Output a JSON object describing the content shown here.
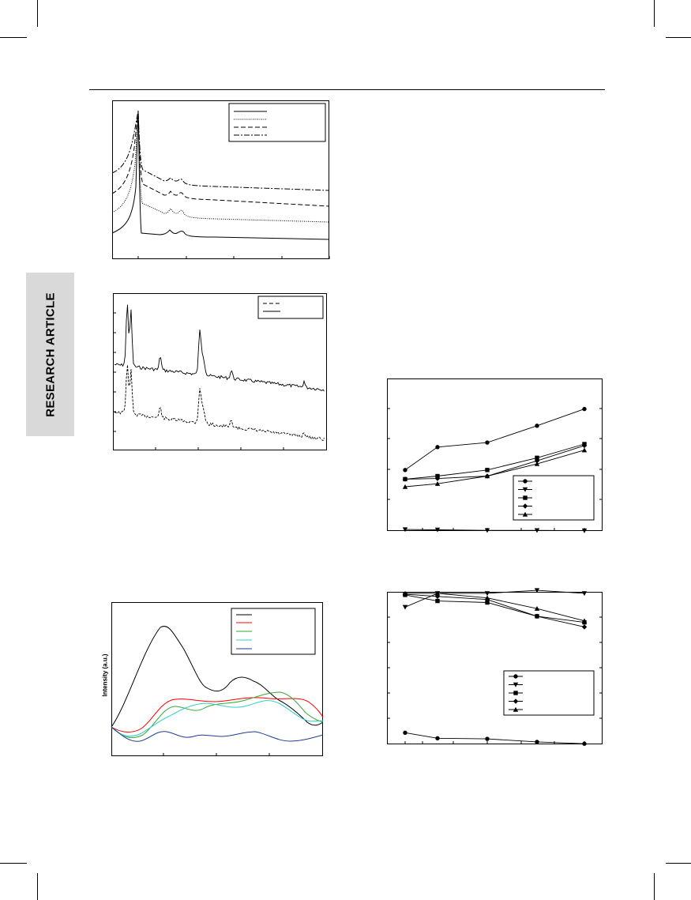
{
  "page": {
    "side_tab_label": "RESEARCH ARTICLE"
  },
  "figures": {
    "fig_spectra4": {
      "legend_entries": 4
    },
    "fig_xrd": {
      "legend_entries": 2
    },
    "fig_pl": {
      "ylabel": "Intensity (a.u.)",
      "series_colors": [
        "#000000",
        "#ff0000",
        "#33aa33",
        "#33cccc",
        "#1a3f99"
      ]
    },
    "fig_trend_up": {
      "legend_entries": 5
    },
    "fig_trend_down": {
      "legend_entries": 5
    }
  },
  "chart_data": [
    {
      "type": "line",
      "series": [
        {
          "values": [
            0.35,
            1.9,
            0.35,
            0.38,
            0.25,
            0.2
          ]
        },
        {
          "values": [
            0.55,
            1.9,
            0.6,
            0.6,
            0.5,
            0.45
          ]
        },
        {
          "values": [
            0.75,
            1.9,
            0.8,
            0.8,
            0.7,
            0.65
          ]
        },
        {
          "values": [
            0.95,
            1.9,
            1.0,
            1.0,
            0.9,
            0.85
          ]
        }
      ],
      "grid": false,
      "legend": "top-right"
    },
    {
      "type": "line",
      "series": [
        {},
        {}
      ],
      "grid": false,
      "legend": "top-right"
    },
    {
      "type": "line",
      "ylabel": "Intensity (a.u.)",
      "series": [
        {},
        {},
        {},
        {},
        {}
      ],
      "grid": false,
      "legend": "top-right"
    },
    {
      "type": "line",
      "x": [
        0,
        1,
        3,
        5,
        7
      ],
      "series": [
        {
          "marker": "circle",
          "values": [
            2.0,
            2.75,
            2.9,
            3.45,
            4.0
          ]
        },
        {
          "marker": "triangle-down",
          "values": [
            0.05,
            0.04,
            0.02,
            0.02,
            0.01
          ]
        },
        {
          "marker": "square",
          "values": [
            1.7,
            1.8,
            2.0,
            2.4,
            2.85
          ]
        },
        {
          "marker": "diamond",
          "values": [
            1.7,
            1.72,
            1.8,
            2.3,
            2.8
          ]
        },
        {
          "marker": "triangle-up",
          "values": [
            1.45,
            1.55,
            1.8,
            2.2,
            2.65
          ]
        }
      ],
      "ylim": [
        0,
        5
      ],
      "grid": false,
      "legend": "center-right"
    },
    {
      "type": "line",
      "x": [
        0,
        1,
        3,
        5,
        7
      ],
      "series": [
        {
          "marker": "circle",
          "values": [
            0.38,
            0.2,
            0.18,
            0.08,
            0.02
          ]
        },
        {
          "marker": "triangle-down",
          "values": [
            4.5,
            4.95,
            4.95,
            5.05,
            4.95
          ]
        },
        {
          "marker": "square",
          "values": [
            4.9,
            4.7,
            4.65,
            4.2,
            4.0
          ]
        },
        {
          "marker": "diamond",
          "values": [
            4.92,
            4.85,
            4.75,
            4.2,
            3.85
          ]
        },
        {
          "marker": "triangle-up",
          "values": [
            4.95,
            4.95,
            4.8,
            4.45,
            4.05
          ]
        }
      ],
      "ylim": [
        0,
        5
      ],
      "grid": false,
      "legend": "center-right"
    }
  ]
}
